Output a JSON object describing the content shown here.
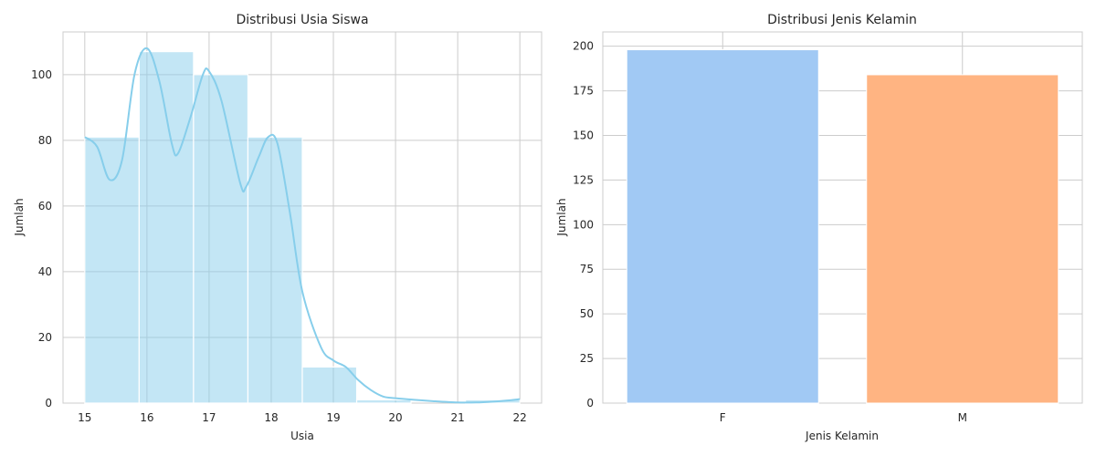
{
  "chart_data": [
    {
      "type": "bar",
      "title": "Distribusi Usia Siswa",
      "xlabel": "Usia",
      "ylabel": "Jumlah",
      "xlim": [
        14.65,
        22.35
      ],
      "ylim": [
        0,
        113
      ],
      "xticks": [
        15,
        16,
        17,
        18,
        19,
        20,
        21,
        22
      ],
      "yticks": [
        0,
        20,
        40,
        60,
        80,
        100
      ],
      "bins": [
        {
          "x0": 15.0,
          "x1": 15.875,
          "count": 81
        },
        {
          "x0": 15.875,
          "x1": 16.75,
          "count": 107
        },
        {
          "x0": 16.75,
          "x1": 17.625,
          "count": 100
        },
        {
          "x0": 17.625,
          "x1": 18.5,
          "count": 81
        },
        {
          "x0": 18.5,
          "x1": 19.375,
          "count": 11
        },
        {
          "x0": 19.375,
          "x1": 20.25,
          "count": 1
        },
        {
          "x0": 20.25,
          "x1": 21.125,
          "count": 0
        },
        {
          "x0": 21.125,
          "x1": 22.0,
          "count": 1
        }
      ],
      "kde": {
        "x": [
          15.0,
          15.2,
          15.4,
          15.6,
          15.8,
          16.0,
          16.2,
          16.4,
          16.5,
          16.7,
          16.9,
          17.0,
          17.2,
          17.5,
          17.6,
          17.8,
          17.95,
          18.1,
          18.3,
          18.5,
          18.8,
          19.0,
          19.2,
          19.4,
          19.6,
          19.8,
          20.0,
          20.3,
          20.6,
          21.0,
          21.3,
          21.6,
          21.8,
          22.0
        ],
        "y": [
          81,
          78,
          68,
          74,
          100,
          108,
          98,
          79,
          76,
          87,
          100,
          101,
          92,
          67,
          66,
          75,
          81,
          79,
          58,
          34,
          17,
          13,
          11,
          7,
          4,
          2,
          1.5,
          1,
          0.6,
          0.2,
          0.2,
          0.5,
          0.8,
          1.2
        ]
      },
      "color": "#87ceeb",
      "grid": true
    },
    {
      "type": "bar",
      "title": "Distribusi Jenis Kelamin",
      "xlabel": "Jenis Kelamin",
      "ylabel": "Jumlah",
      "categories": [
        "F",
        "M"
      ],
      "values": [
        198,
        184
      ],
      "ylim": [
        0,
        208
      ],
      "yticks": [
        0,
        25,
        50,
        75,
        100,
        125,
        150,
        175,
        200
      ],
      "colors": [
        "#a1c9f4",
        "#ffb482"
      ],
      "grid": true
    }
  ]
}
